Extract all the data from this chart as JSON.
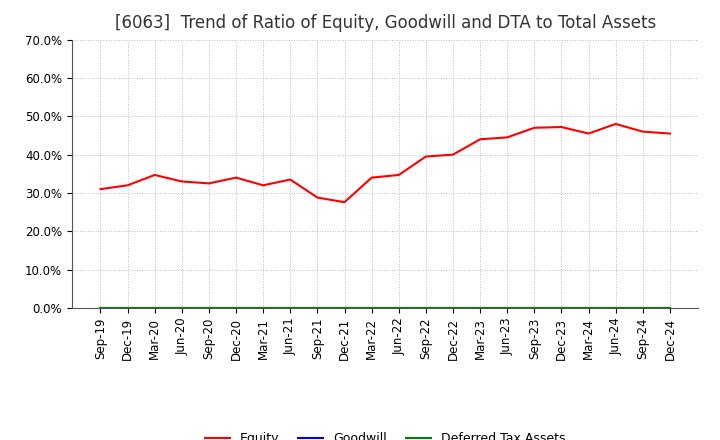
{
  "title": "[6063]  Trend of Ratio of Equity, Goodwill and DTA to Total Assets",
  "x_labels": [
    "Sep-19",
    "Dec-19",
    "Mar-20",
    "Jun-20",
    "Sep-20",
    "Dec-20",
    "Mar-21",
    "Jun-21",
    "Sep-21",
    "Dec-21",
    "Mar-22",
    "Jun-22",
    "Sep-22",
    "Dec-22",
    "Mar-23",
    "Jun-23",
    "Sep-23",
    "Dec-23",
    "Mar-24",
    "Jun-24",
    "Sep-24",
    "Dec-24"
  ],
  "equity": [
    0.31,
    0.32,
    0.347,
    0.33,
    0.325,
    0.34,
    0.32,
    0.335,
    0.288,
    0.276,
    0.34,
    0.347,
    0.395,
    0.4,
    0.44,
    0.445,
    0.47,
    0.472,
    0.455,
    0.48,
    0.46,
    0.455
  ],
  "goodwill": [
    0.0,
    0.0,
    0.0,
    0.0,
    0.0,
    0.0,
    0.0,
    0.0,
    0.0,
    0.0,
    0.0,
    0.0,
    0.0,
    0.0,
    0.0,
    0.0,
    0.0,
    0.0,
    0.0,
    0.0,
    0.0,
    0.0
  ],
  "dta": [
    0.0,
    0.0,
    0.0,
    0.0,
    0.0,
    0.0,
    0.0,
    0.0,
    0.0,
    0.0,
    0.0,
    0.0,
    0.0,
    0.0,
    0.0,
    0.0,
    0.0,
    0.0,
    0.0,
    0.0,
    0.0,
    0.0
  ],
  "equity_color": "#FF0000",
  "goodwill_color": "#0000FF",
  "dta_color": "#008000",
  "ylim": [
    0.0,
    0.7
  ],
  "yticks": [
    0.0,
    0.1,
    0.2,
    0.3,
    0.4,
    0.5,
    0.6,
    0.7
  ],
  "background_color": "#FFFFFF",
  "grid_color": "#BBBBBB",
  "title_fontsize": 12,
  "tick_fontsize": 8.5,
  "legend_labels": [
    "Equity",
    "Goodwill",
    "Deferred Tax Assets"
  ]
}
